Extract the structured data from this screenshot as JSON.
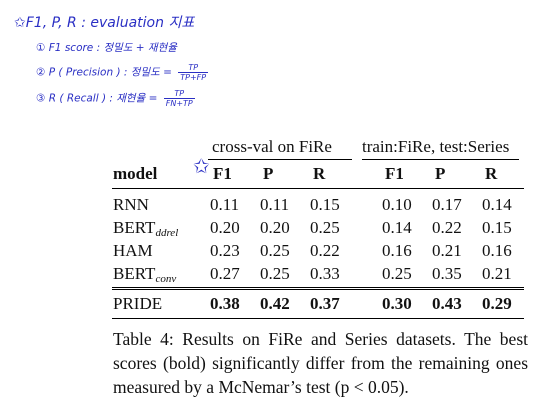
{
  "handwritten_notes": {
    "title": "F1, P, R : evaluation 지표",
    "items": [
      {
        "marker": "①",
        "text": "F1 score : 정밀도 + 재현율"
      },
      {
        "marker": "②",
        "text": "P ( Precision ) : 정밀도 =",
        "num": "TP",
        "den": "TP+FP"
      },
      {
        "marker": "③",
        "text": "R ( Recall ) : 재현율 =",
        "num": "TP",
        "den": "FN+TP"
      }
    ]
  },
  "table": {
    "group_headers": [
      "cross-val on FiRe",
      "train:FiRe, test:Series"
    ],
    "column_headers": [
      "model",
      "F1",
      "P",
      "R",
      "F1",
      "P",
      "R"
    ],
    "rows": [
      {
        "model": "RNN",
        "sub": "",
        "values": [
          "0.11",
          "0.11",
          "0.15",
          "0.10",
          "0.17",
          "0.14"
        ]
      },
      {
        "model": "BERT",
        "sub": "ddrel",
        "values": [
          "0.20",
          "0.20",
          "0.25",
          "0.14",
          "0.22",
          "0.15"
        ]
      },
      {
        "model": "HAM",
        "sub": "",
        "values": [
          "0.23",
          "0.25",
          "0.22",
          "0.16",
          "0.21",
          "0.16"
        ]
      },
      {
        "model": "BERT",
        "sub": "conv",
        "values": [
          "0.27",
          "0.25",
          "0.33",
          "0.25",
          "0.35",
          "0.21"
        ]
      }
    ],
    "final_row": {
      "model": "PRIDE",
      "values": [
        "0.38",
        "0.42",
        "0.37",
        "0.30",
        "0.43",
        "0.29"
      ]
    }
  },
  "caption": "Table 4: Results on FiRe and Series datasets. The best scores (bold) significantly differ from the remaining ones measured by a McNemar’s test (p < 0.05)."
}
